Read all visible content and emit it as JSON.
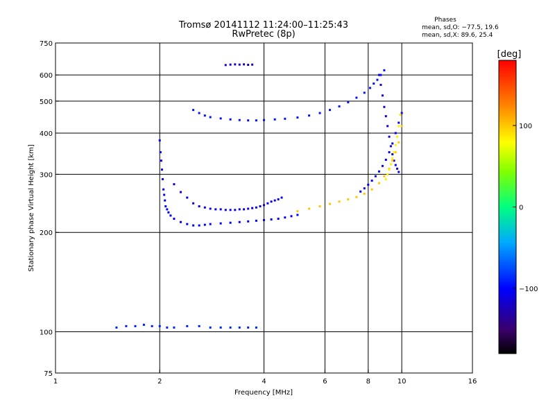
{
  "chart_data": {
    "type": "scatter",
    "title": "Tromsø 20141112 11:24:00–11:25:43",
    "subtitle": "RwPretec (8p)",
    "xlabel": "Frequency [MHz]",
    "ylabel": "Stationary phase Virtual Height [km]",
    "x_scale": "log",
    "y_scale": "log",
    "xlim": [
      1,
      16
    ],
    "ylim": [
      75,
      750
    ],
    "x_ticks": [
      1,
      2,
      4,
      6,
      8,
      10,
      16
    ],
    "x_tick_labels": [
      "1",
      "2",
      "4",
      "6",
      "8",
      "10",
      "16"
    ],
    "y_ticks": [
      75,
      100,
      200,
      300,
      400,
      500,
      600,
      750
    ],
    "y_tick_labels": [
      "75",
      "100",
      "200",
      "300",
      "400",
      "500",
      "600",
      "750"
    ],
    "x_gridlines": [
      2,
      4,
      6,
      8,
      10
    ],
    "y_gridlines": [
      100,
      200,
      300,
      400,
      500,
      600
    ],
    "stats": {
      "header": "Phases",
      "line_O": "mean, sd,O: −77.5, 19.6",
      "line_X": "mean, sd,X:  89.6, 25.4"
    },
    "colorbar": {
      "unit_label": "[deg]",
      "range": [
        -180,
        180
      ],
      "ticks": [
        100,
        0,
        -100
      ],
      "tick_labels": [
        "100",
        "0",
        "−100"
      ]
    },
    "series": [
      {
        "phase": -100,
        "x": [
          2.0,
          2.01,
          2.02,
          2.03,
          2.04,
          2.05,
          2.06,
          2.07,
          2.08,
          2.1,
          2.12,
          2.15,
          2.2,
          2.3,
          2.4,
          2.5,
          2.6,
          2.7,
          2.8,
          3.0,
          3.2,
          3.4,
          3.6,
          3.8,
          4.0,
          4.2,
          4.4,
          4.6,
          4.8,
          5.0
        ],
        "y": [
          380,
          350,
          330,
          310,
          290,
          270,
          260,
          250,
          240,
          235,
          230,
          225,
          220,
          215,
          212,
          210,
          210,
          211,
          212,
          213,
          214,
          215,
          216,
          217,
          218,
          219,
          220,
          222,
          224,
          226
        ]
      },
      {
        "phase": -110,
        "x": [
          2.2,
          2.3,
          2.4,
          2.5,
          2.6,
          2.7,
          2.8,
          2.9,
          3.0,
          3.1,
          3.2,
          3.3,
          3.4,
          3.5,
          3.6,
          3.7,
          3.8,
          3.9,
          4.0,
          4.1,
          4.2,
          4.3,
          4.4,
          4.5
        ],
        "y": [
          280,
          265,
          255,
          245,
          240,
          238,
          236,
          235,
          235,
          234,
          234,
          234,
          235,
          235,
          236,
          237,
          238,
          240,
          242,
          245,
          248,
          250,
          252,
          255
        ]
      },
      {
        "phase": -95,
        "x": [
          2.5,
          2.6,
          2.7,
          2.8,
          3.0,
          3.2,
          3.4,
          3.6,
          3.8,
          4.0,
          4.3,
          4.6,
          5.0,
          5.4,
          5.8,
          6.2,
          6.6,
          7.0,
          7.4,
          7.8,
          8.1,
          8.3,
          8.5,
          8.7,
          8.9
        ],
        "y": [
          470,
          460,
          452,
          447,
          443,
          440,
          438,
          437,
          437,
          438,
          440,
          442,
          446,
          452,
          460,
          470,
          482,
          496,
          512,
          530,
          548,
          565,
          580,
          600,
          620
        ]
      },
      {
        "phase": -105,
        "x": [
          7.6,
          7.8,
          8.0,
          8.2,
          8.4,
          8.6,
          8.8,
          9.0,
          9.2,
          9.4,
          9.6,
          9.8,
          10.0
        ],
        "y": [
          266,
          272,
          279,
          287,
          296,
          306,
          318,
          332,
          350,
          372,
          400,
          430,
          460
        ]
      },
      {
        "phase": -115,
        "x": [
          8.6,
          8.7,
          8.8,
          8.9,
          9.0,
          9.1,
          9.2,
          9.3,
          9.4,
          9.5,
          9.6,
          9.7,
          9.8
        ],
        "y": [
          600,
          560,
          520,
          480,
          450,
          420,
          390,
          365,
          345,
          330,
          320,
          312,
          305
        ]
      },
      {
        "phase": -90,
        "x": [
          1.5,
          1.6,
          1.7,
          1.8,
          1.9,
          2.0,
          2.1,
          2.2,
          2.4,
          2.6,
          2.8,
          3.0,
          3.2,
          3.4,
          3.6,
          3.8
        ],
        "y": [
          103,
          104,
          104,
          105,
          104,
          104,
          103,
          103,
          104,
          104,
          103,
          103,
          103,
          103,
          103,
          103
        ]
      },
      {
        "phase": -120,
        "x": [
          3.1,
          3.2,
          3.3,
          3.4,
          3.5,
          3.6,
          3.7
        ],
        "y": [
          643,
          645,
          646,
          645,
          646,
          644,
          645
        ]
      },
      {
        "phase": 100,
        "x": [
          5.0,
          5.4,
          5.8,
          6.2,
          6.6,
          7.0,
          7.4,
          7.8,
          8.2,
          8.6,
          8.9,
          9.2,
          9.4,
          9.6,
          9.8,
          10.0
        ],
        "y": [
          232,
          236,
          240,
          244,
          248,
          252,
          256,
          262,
          270,
          282,
          296,
          312,
          330,
          350,
          375,
          420
        ]
      },
      {
        "phase": 85,
        "x": [
          9.0,
          9.1,
          9.2,
          9.3,
          9.4,
          9.5,
          9.6,
          9.7,
          9.8,
          9.9
        ],
        "y": [
          290,
          300,
          310,
          322,
          335,
          350,
          368,
          390,
          420,
          455
        ]
      }
    ]
  }
}
